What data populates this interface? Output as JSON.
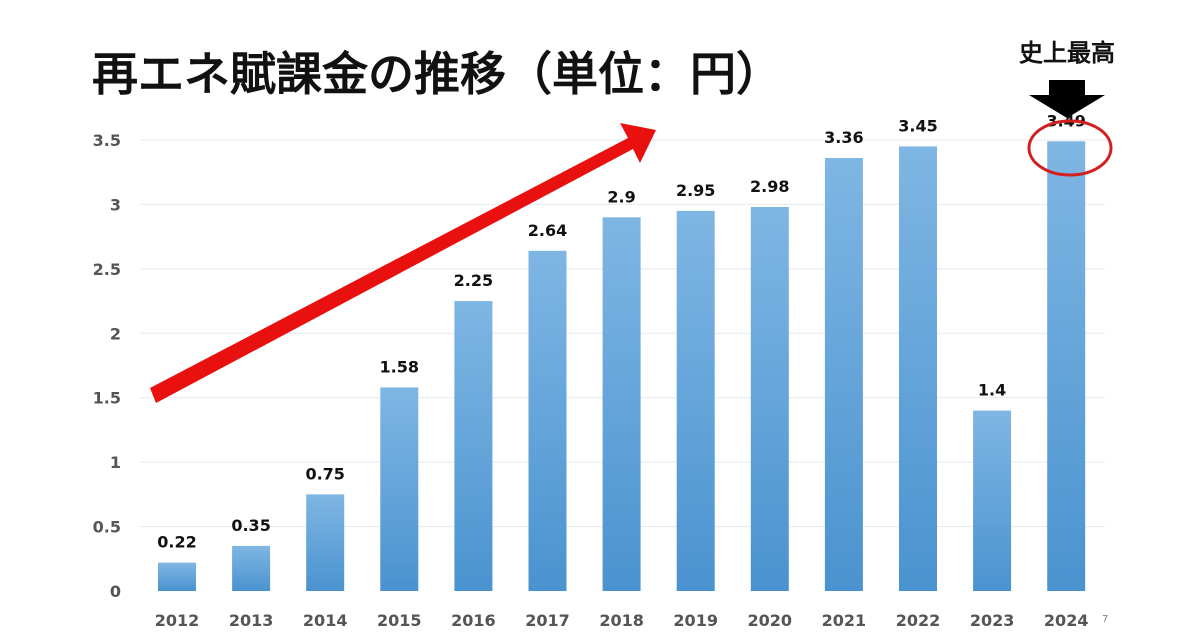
{
  "slide": {
    "title": "再エネ賦課金の推移（単位：円）",
    "callout": "史上最高",
    "page_number": "7"
  },
  "chart_data": {
    "type": "bar",
    "title": "再エネ賦課金の推移（単位：円）",
    "categories": [
      "2012",
      "2013",
      "2014",
      "2015",
      "2016",
      "2017",
      "2018",
      "2019",
      "2020",
      "2021",
      "2022",
      "2023",
      "2024"
    ],
    "values": [
      0.22,
      0.35,
      0.75,
      1.58,
      2.25,
      2.64,
      2.9,
      2.95,
      2.98,
      3.36,
      3.45,
      1.4,
      3.49
    ],
    "value_labels": [
      "0.22",
      "0.35",
      "0.75",
      "1.58",
      "2.25",
      "2.64",
      "2.9",
      "2.95",
      "2.98",
      "3.36",
      "3.45",
      "1.4",
      "3.49"
    ],
    "ylim": [
      0,
      3.5
    ],
    "yticks": [
      "0",
      "0.5",
      "1",
      "1.5",
      "2",
      "2.5",
      "3",
      "3.5"
    ],
    "xlabel": "",
    "ylabel": "",
    "grid": true,
    "highlighted_category": "2024",
    "colors": {
      "bar_top": "#7fb6e3",
      "bar_bottom": "#4a93d0",
      "arrow": "#e8110f",
      "circle": "#d22020",
      "pointer": "#000000",
      "grid": "#e4e9ef"
    }
  }
}
